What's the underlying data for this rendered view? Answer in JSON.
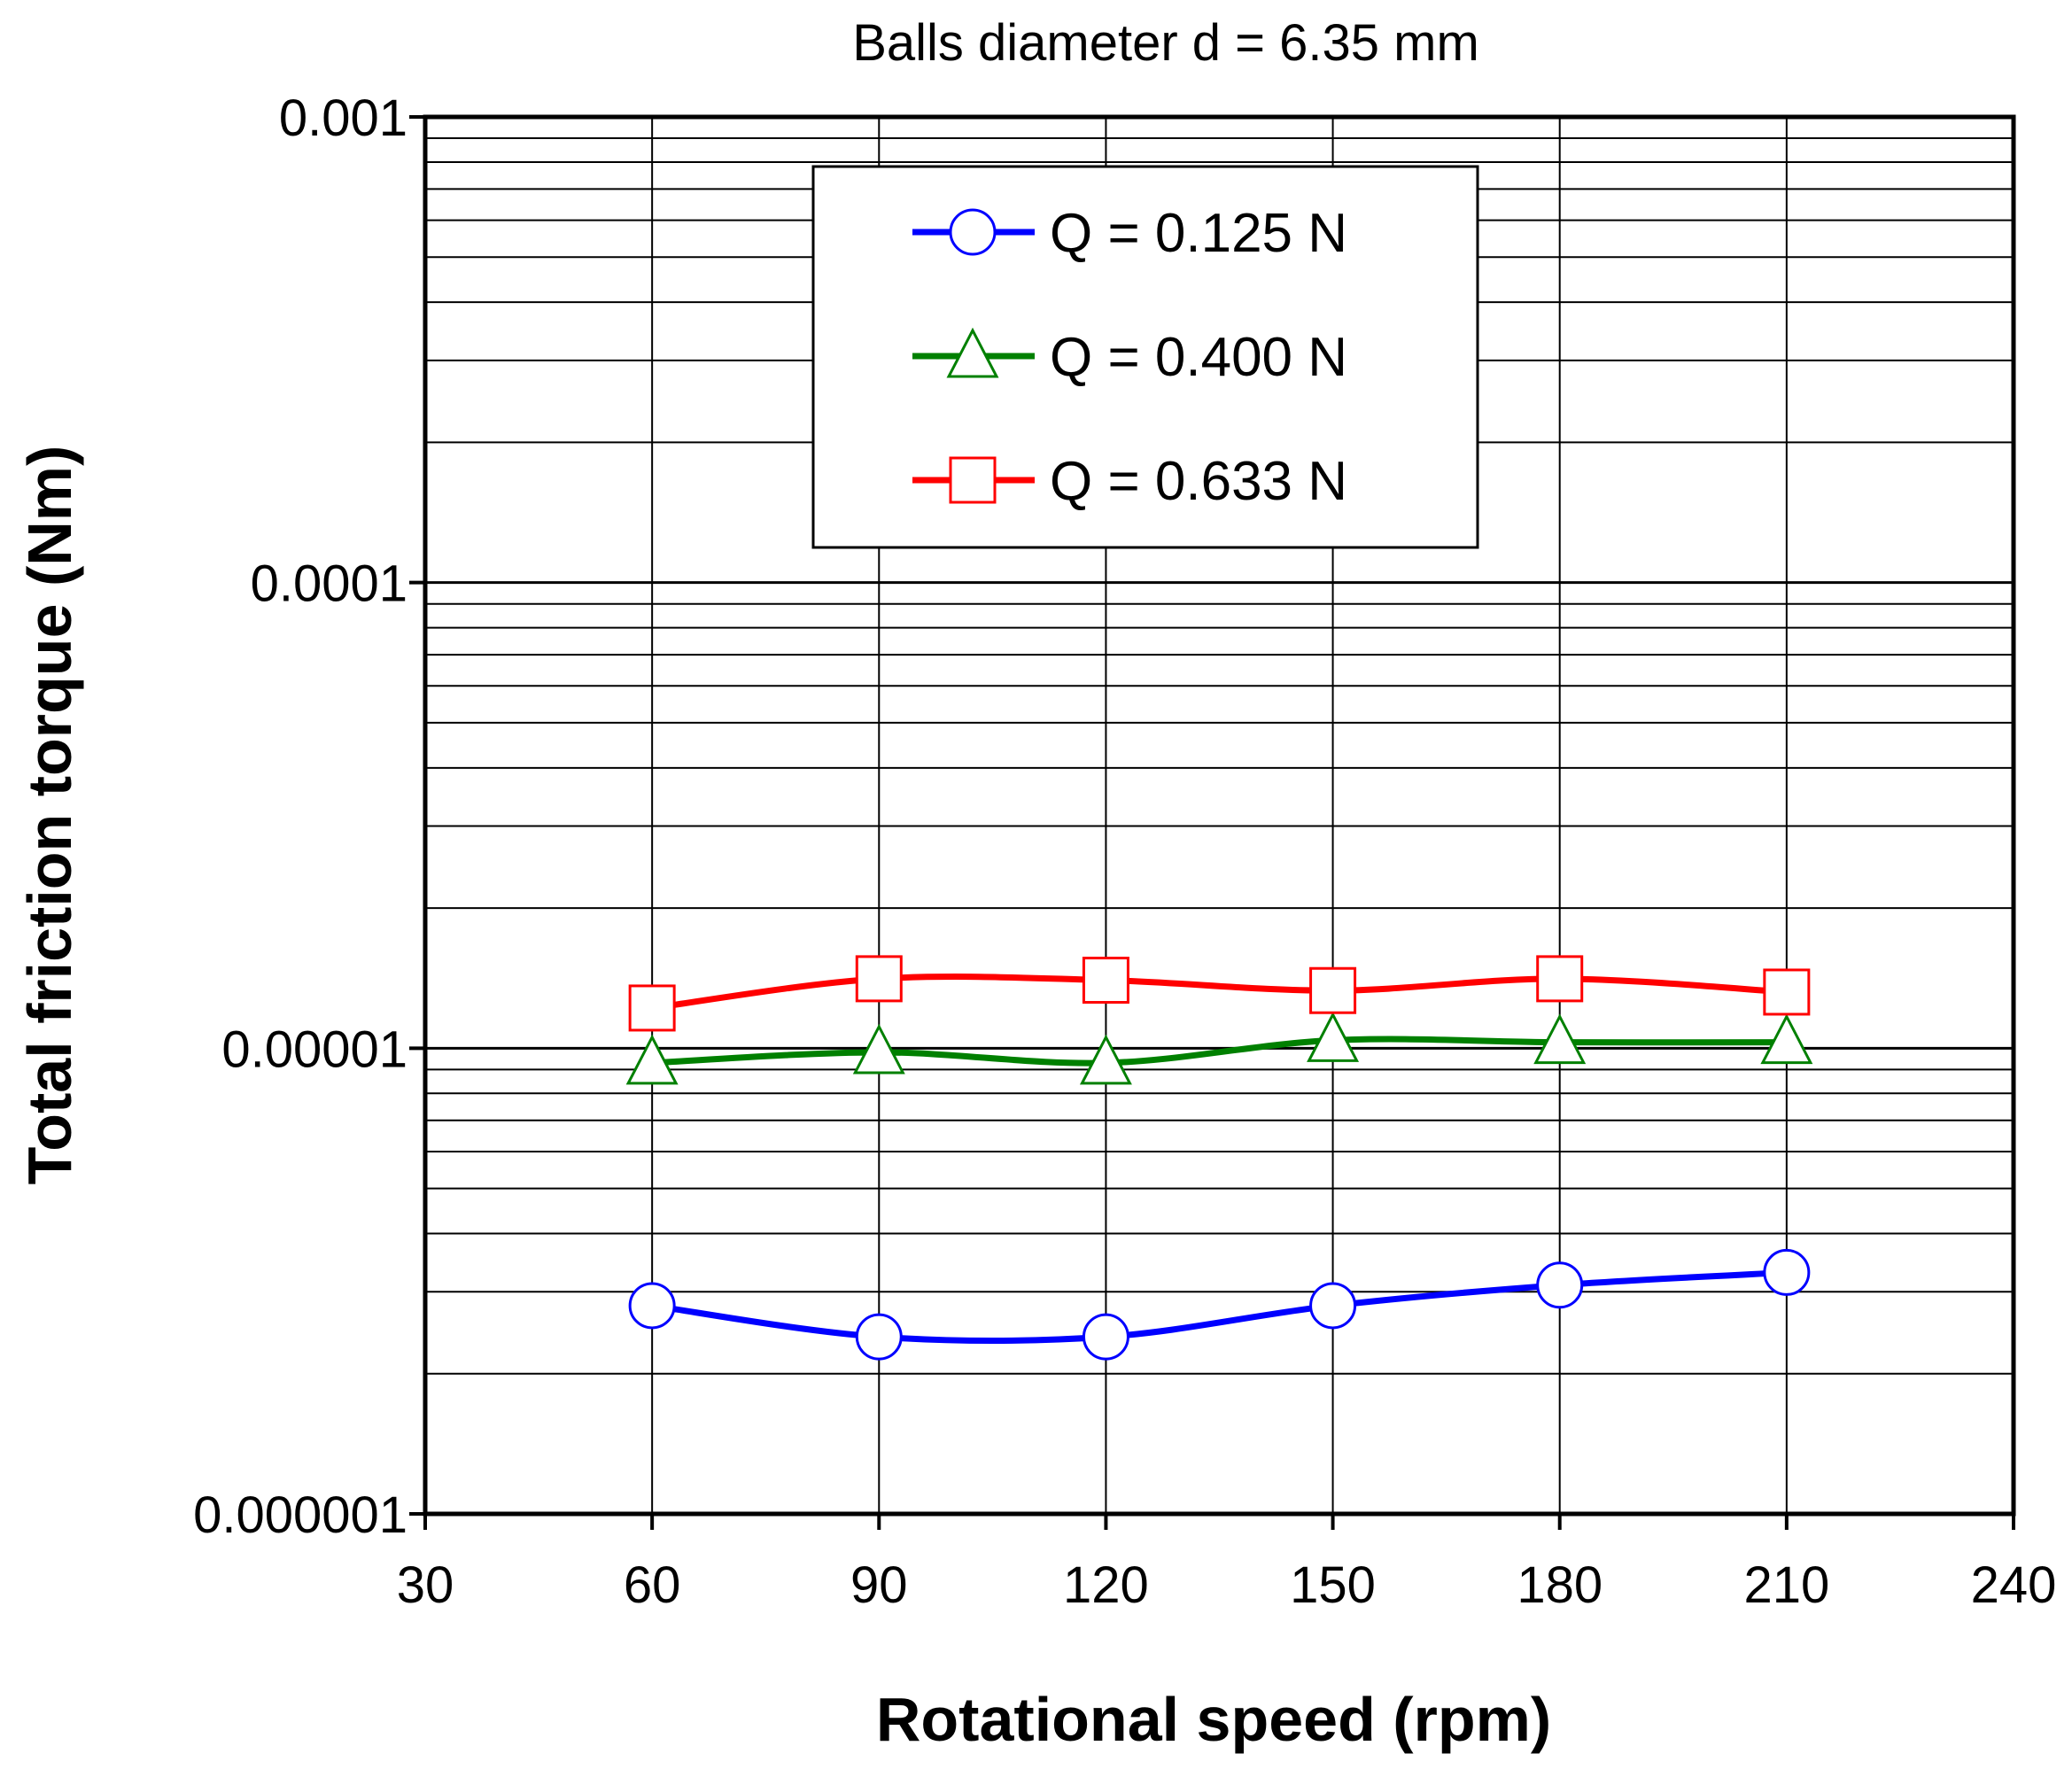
{
  "chart_data": {
    "type": "line",
    "title": "Balls diameter d = 6.35 mm",
    "xlabel": "Rotational speed (rpm)",
    "ylabel": "Total friction torque (Nm)",
    "xlim": [
      30,
      240
    ],
    "ylim": [
      1e-06,
      0.001
    ],
    "yscale": "log",
    "grid": true,
    "legend_position": "top-center",
    "x": [
      60,
      90,
      120,
      150,
      180,
      210
    ],
    "x_tick_labels": [
      "30",
      "60",
      "90",
      "120",
      "150",
      "180",
      "210",
      "240"
    ],
    "x_ticks": [
      30,
      60,
      90,
      120,
      150,
      180,
      210,
      240
    ],
    "y_tick_labels": [
      "0.001",
      "0.0001",
      "0.00001",
      "0.000001"
    ],
    "y_ticks": [
      0.001,
      0.0001,
      1e-05,
      1e-06
    ],
    "series": [
      {
        "name": "Q = 0.125 N",
        "color": "#0000ff",
        "marker": "circle",
        "values": [
          2.8e-06,
          2.4e-06,
          2.4e-06,
          2.8e-06,
          3.1e-06,
          3.3e-06
        ]
      },
      {
        "name": "Q = 0.400 N",
        "color": "#008000",
        "marker": "triangle",
        "values": [
          9.3e-06,
          9.8e-06,
          9.3e-06,
          1.04e-05,
          1.03e-05,
          1.03e-05
        ]
      },
      {
        "name": "Q = 0.633 N",
        "color": "#ff0000",
        "marker": "square",
        "values": [
          1.22e-05,
          1.41e-05,
          1.4e-05,
          1.33e-05,
          1.41e-05,
          1.32e-05
        ]
      }
    ]
  }
}
